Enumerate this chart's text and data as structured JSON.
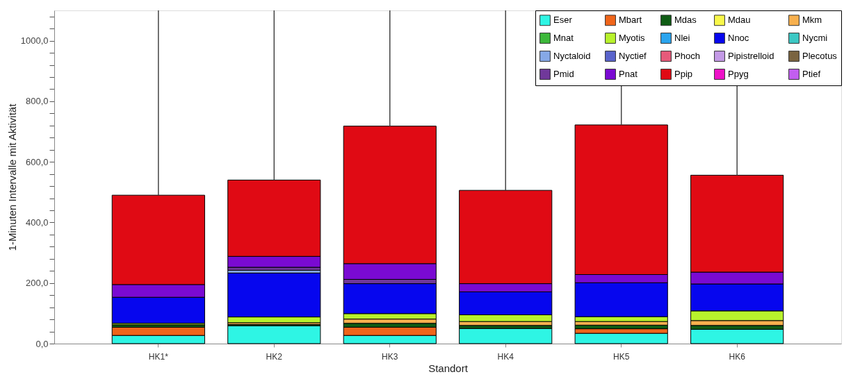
{
  "chart_data": {
    "type": "bar",
    "stacked": true,
    "xlabel": "Standort",
    "ylabel": "1-Minuten Intervalle mit Aktivität",
    "categories": [
      "HK1*",
      "HK2",
      "HK3",
      "HK4",
      "HK5",
      "HK6"
    ],
    "ylim": [
      0,
      1100
    ],
    "yticks": [
      {
        "value": 0,
        "label": "0,0"
      },
      {
        "value": 40,
        "label": null
      },
      {
        "value": 80,
        "label": null
      },
      {
        "value": 120,
        "label": null
      },
      {
        "value": 160,
        "label": null
      },
      {
        "value": 200,
        "label": "200,0"
      },
      {
        "value": 240,
        "label": null
      },
      {
        "value": 280,
        "label": null
      },
      {
        "value": 320,
        "label": null
      },
      {
        "value": 360,
        "label": null
      },
      {
        "value": 400,
        "label": "400,0"
      },
      {
        "value": 440,
        "label": null
      },
      {
        "value": 480,
        "label": null
      },
      {
        "value": 520,
        "label": null
      },
      {
        "value": 560,
        "label": null
      },
      {
        "value": 600,
        "label": "600,0"
      },
      {
        "value": 640,
        "label": null
      },
      {
        "value": 680,
        "label": null
      },
      {
        "value": 720,
        "label": null
      },
      {
        "value": 760,
        "label": null
      },
      {
        "value": 800,
        "label": "800,0"
      },
      {
        "value": 840,
        "label": null
      },
      {
        "value": 880,
        "label": null
      },
      {
        "value": 920,
        "label": null
      },
      {
        "value": 960,
        "label": null
      },
      {
        "value": 1000,
        "label": "1000,0"
      },
      {
        "value": 1040,
        "label": null
      },
      {
        "value": 1080,
        "label": null
      }
    ],
    "grid": false,
    "legend": "top right",
    "series": [
      {
        "name": "Eser",
        "color": "#2ef5e4",
        "values": [
          27,
          59,
          27,
          50,
          34,
          47
        ]
      },
      {
        "name": "Mbart",
        "color": "#f0651a",
        "values": [
          27,
          null,
          27,
          null,
          15,
          null
        ]
      },
      {
        "name": "Mdas",
        "color": "#0f5c14",
        "values": [
          8,
          4,
          13,
          10,
          12,
          13
        ]
      },
      {
        "name": "Mdau",
        "color": "#f8f74a",
        "values": [
          null,
          null,
          null,
          null,
          null,
          null
        ]
      },
      {
        "name": "Mkm",
        "color": "#f7b04e",
        "values": [
          null,
          6,
          14,
          13,
          12,
          16
        ]
      },
      {
        "name": "Mnat",
        "color": "#3cb83a",
        "values": [
          null,
          null,
          null,
          null,
          null,
          null
        ]
      },
      {
        "name": "Myotis",
        "color": "#b8f22c",
        "values": [
          5,
          19,
          18,
          22,
          16,
          32
        ]
      },
      {
        "name": "Nlei",
        "color": "#2aa4ee",
        "values": [
          null,
          null,
          null,
          null,
          null,
          null
        ]
      },
      {
        "name": "Nnoc",
        "color": "#0606ee",
        "values": [
          86,
          145,
          99,
          76,
          112,
          89
        ]
      },
      {
        "name": "Nycmi",
        "color": "#3cc8c4",
        "values": [
          null,
          null,
          null,
          null,
          null,
          null
        ]
      },
      {
        "name": "Nyctaloid",
        "color": "#86a8e6",
        "values": [
          null,
          9,
          null,
          null,
          null,
          null
        ]
      },
      {
        "name": "Nyctief",
        "color": "#5a64cc",
        "values": [
          null,
          null,
          null,
          null,
          null,
          null
        ]
      },
      {
        "name": "Phoch",
        "color": "#e65a7a",
        "values": [
          null,
          null,
          null,
          null,
          null,
          null
        ]
      },
      {
        "name": "Pipistrelloid",
        "color": "#c49ae6",
        "values": [
          null,
          null,
          null,
          null,
          null,
          null
        ]
      },
      {
        "name": "Plecotus",
        "color": "#7a6440",
        "values": [
          null,
          null,
          null,
          null,
          null,
          null
        ]
      },
      {
        "name": "Pmid",
        "color": "#70389a",
        "values": [
          null,
          10,
          14,
          null,
          null,
          null
        ]
      },
      {
        "name": "Pnat",
        "color": "#7a0ad2",
        "values": [
          42,
          36,
          52,
          27,
          27,
          39
        ]
      },
      {
        "name": "Ppip",
        "color": "#e00a14",
        "values": [
          295,
          252,
          454,
          308,
          494,
          320
        ],
        "errors": [
          [
            490,
            1100
          ],
          [
            540,
            1100
          ],
          [
            718,
            1100
          ],
          [
            506,
            1100
          ],
          [
            722,
            1100
          ],
          [
            556,
            1100
          ]
        ]
      },
      {
        "name": "Ppyg",
        "color": "#ee12c8",
        "values": [
          null,
          null,
          null,
          null,
          null,
          null
        ]
      },
      {
        "name": "Ptief",
        "color": "#c25ef0",
        "values": [
          null,
          null,
          null,
          null,
          null,
          null
        ]
      }
    ]
  }
}
